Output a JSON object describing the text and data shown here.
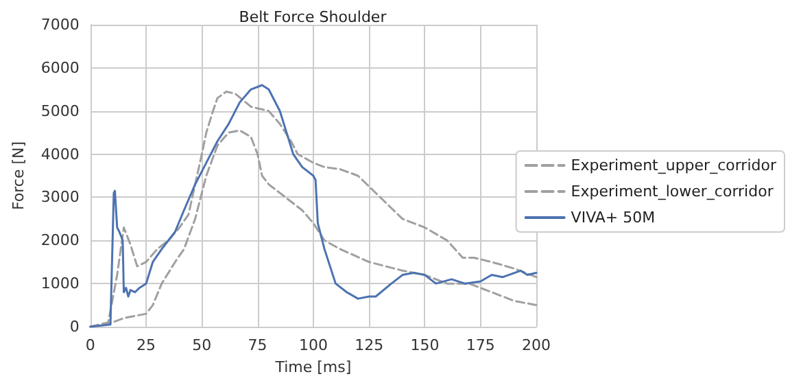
{
  "chart_data": {
    "type": "line",
    "title": "Belt Force Shoulder",
    "xlabel": "Time [ms]",
    "ylabel": "Force [N]",
    "xlim": [
      0,
      200
    ],
    "xticks": [
      0,
      25,
      50,
      75,
      100,
      125,
      150,
      175,
      200
    ],
    "ylim": [
      0,
      7000
    ],
    "yticks": [
      0,
      1000,
      2000,
      3000,
      4000,
      5000,
      6000,
      7000
    ],
    "grid": true,
    "legend": "right",
    "marker": "none",
    "series": [
      {
        "name": "Experiment_upper_corridor",
        "color": "#a0a0a0",
        "line_style": "dashed",
        "x": [
          0,
          8,
          12,
          15,
          18,
          21,
          25,
          30,
          35,
          40,
          44,
          47,
          50,
          52,
          55,
          57,
          61,
          65,
          72,
          80,
          85,
          90,
          93,
          100,
          105,
          112,
          120,
          130,
          140,
          150,
          160,
          167,
          172,
          180,
          190,
          200
        ],
        "values": [
          0,
          100,
          1200,
          2300,
          1900,
          1400,
          1500,
          1800,
          2000,
          2300,
          2600,
          3300,
          4000,
          4500,
          5000,
          5300,
          5450,
          5400,
          5100,
          5000,
          4700,
          4300,
          4000,
          3800,
          3700,
          3650,
          3500,
          3000,
          2500,
          2300,
          2000,
          1600,
          1600,
          1500,
          1350,
          1150
        ]
      },
      {
        "name": "Experiment_lower_corridor",
        "color": "#a0a0a0",
        "line_style": "dashed",
        "x": [
          0,
          10,
          15,
          25,
          28,
          32,
          38,
          42,
          47,
          52,
          57,
          62,
          67,
          72,
          75,
          77,
          80,
          85,
          95,
          100,
          105,
          112,
          125,
          140,
          150,
          160,
          170,
          180,
          190,
          200
        ],
        "values": [
          0,
          100,
          200,
          300,
          500,
          1000,
          1500,
          1800,
          2500,
          3500,
          4200,
          4500,
          4550,
          4400,
          4000,
          3500,
          3300,
          3100,
          2700,
          2400,
          2000,
          1800,
          1500,
          1300,
          1200,
          1000,
          1000,
          800,
          600,
          500
        ]
      },
      {
        "name": "VIVA+ 50M",
        "color": "#4c72b0",
        "line_style": "solid",
        "x": [
          0,
          9,
          10.5,
          11,
          12,
          13,
          14.5,
          15,
          16,
          17,
          18,
          20,
          22,
          25,
          28,
          32,
          35,
          38,
          42,
          47,
          52,
          57,
          62,
          67,
          72,
          77,
          80,
          85,
          88,
          91,
          95,
          100,
          101,
          102,
          105,
          110,
          115,
          120,
          125,
          128,
          135,
          140,
          145,
          150,
          155,
          162,
          168,
          175,
          180,
          185,
          193,
          196,
          200
        ],
        "values": [
          0,
          50,
          3100,
          3150,
          2300,
          2200,
          2000,
          800,
          900,
          700,
          850,
          800,
          900,
          1000,
          1500,
          1800,
          2000,
          2200,
          2700,
          3300,
          3800,
          4300,
          4700,
          5200,
          5500,
          5600,
          5500,
          5000,
          4500,
          4000,
          3700,
          3500,
          3400,
          2400,
          1800,
          1000,
          800,
          650,
          700,
          700,
          1000,
          1200,
          1250,
          1200,
          1000,
          1100,
          1000,
          1050,
          1200,
          1150,
          1300,
          1200,
          1250
        ]
      }
    ]
  }
}
